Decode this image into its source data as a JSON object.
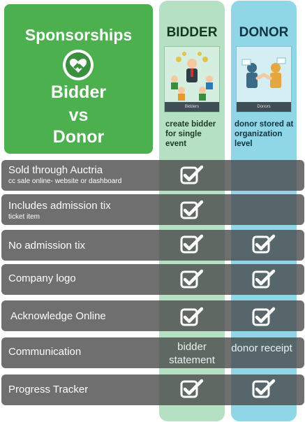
{
  "title": {
    "line1": "Sponsorships",
    "line2": "Bidder",
    "line3": "vs",
    "line4": "Donor",
    "badge_icon": "heart-handshake-icon"
  },
  "bidder": {
    "heading": "BIDDER",
    "thumb_caption": "Bidders",
    "description": "create bidder for single event"
  },
  "donor": {
    "heading": "DONOR",
    "thumb_caption": "Donors",
    "description": "donor stored at organization level"
  },
  "rows": [
    {
      "label": "Sold through Auctria",
      "sublabel": "cc sale online- website or dashboard",
      "bidder": "check",
      "donor": ""
    },
    {
      "label": "Includes admission tix",
      "sublabel": "ticket item",
      "bidder": "check",
      "donor": ""
    },
    {
      "label": "No admission tix",
      "sublabel": "",
      "bidder": "check",
      "donor": "check"
    },
    {
      "label": "Company logo",
      "sublabel": "",
      "bidder": "check",
      "donor": "check"
    },
    {
      "label": "Acknowledge Online",
      "sublabel": "",
      "bidder": "check",
      "donor": "check"
    },
    {
      "label": "Communication",
      "sublabel": "",
      "bidder": "bidder statement",
      "donor": "donor receipt"
    },
    {
      "label": "Progress Tracker",
      "sublabel": "",
      "bidder": "check",
      "donor": "check"
    }
  ],
  "colors": {
    "green": "#4cb04f",
    "bidder_column": "#b5e0c4",
    "donor_column": "#8fd6e6",
    "row_gray": "#464646"
  }
}
